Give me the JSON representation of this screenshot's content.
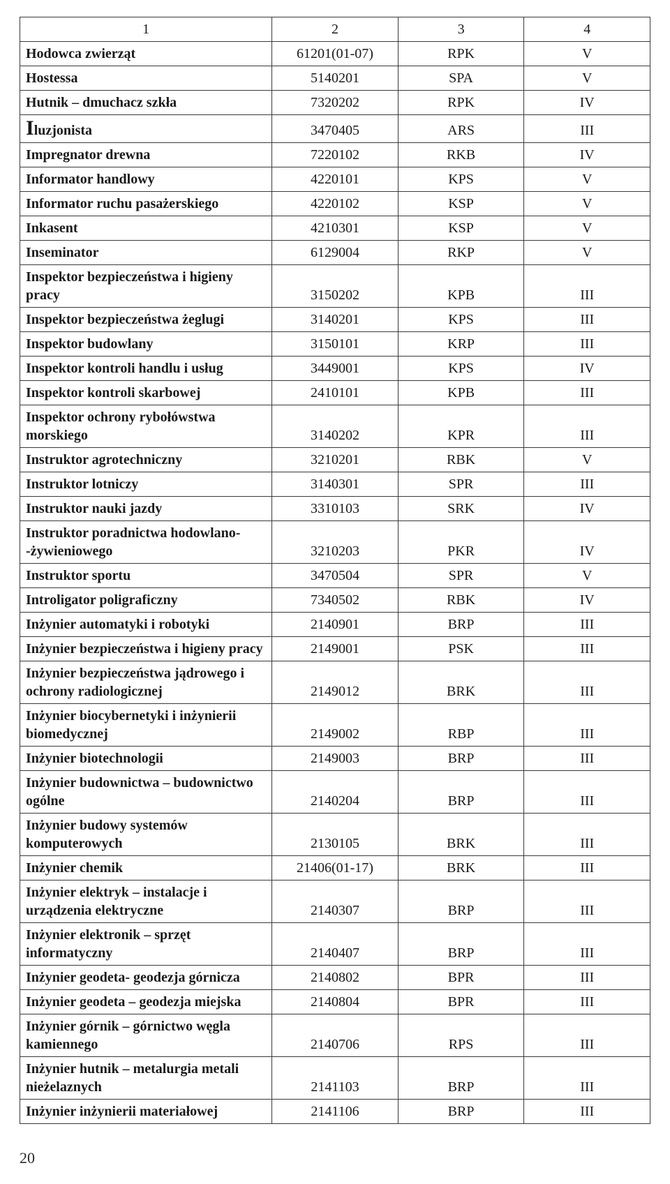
{
  "table": {
    "columns": [
      "1",
      "2",
      "3",
      "4"
    ],
    "column_widths_pct": [
      40,
      20,
      20,
      20
    ],
    "border_color": "#3a3a3a",
    "font_family": "Times New Roman",
    "header_fontsize": 20,
    "cell_fontsize": 20,
    "rows": [
      {
        "name": "Hodowca zwierząt",
        "code": "61201(01-07)",
        "abbr": "RPK",
        "level": "V",
        "dropcap": false
      },
      {
        "name": "Hostessa",
        "code": "5140201",
        "abbr": "SPA",
        "level": "V",
        "dropcap": false
      },
      {
        "name": "Hutnik – dmuchacz szkła",
        "code": "7320202",
        "abbr": "RPK",
        "level": "IV",
        "dropcap": false
      },
      {
        "name": "Iluzjonista",
        "code": "3470405",
        "abbr": "ARS",
        "level": "III",
        "dropcap": true
      },
      {
        "name": "Impregnator drewna",
        "code": "7220102",
        "abbr": "RKB",
        "level": "IV",
        "dropcap": false
      },
      {
        "name": "Informator handlowy",
        "code": "4220101",
        "abbr": "KPS",
        "level": "V",
        "dropcap": false
      },
      {
        "name": "Informator ruchu pasażerskiego",
        "code": "4220102",
        "abbr": "KSP",
        "level": "V",
        "dropcap": false
      },
      {
        "name": "Inkasent",
        "code": "4210301",
        "abbr": "KSP",
        "level": "V",
        "dropcap": false
      },
      {
        "name": "Inseminator",
        "code": "6129004",
        "abbr": "RKP",
        "level": "V",
        "dropcap": false
      },
      {
        "name": "Inspektor bezpieczeństwa i higieny pracy",
        "code": "3150202",
        "abbr": "KPB",
        "level": "III",
        "dropcap": false
      },
      {
        "name": "Inspektor bezpieczeństwa żeglugi",
        "code": "3140201",
        "abbr": "KPS",
        "level": "III",
        "dropcap": false
      },
      {
        "name": "Inspektor budowlany",
        "code": "3150101",
        "abbr": "KRP",
        "level": "III",
        "dropcap": false
      },
      {
        "name": "Inspektor kontroli handlu i usług",
        "code": "3449001",
        "abbr": "KPS",
        "level": "IV",
        "dropcap": false
      },
      {
        "name": "Inspektor kontroli skarbowej",
        "code": "2410101",
        "abbr": "KPB",
        "level": "III",
        "dropcap": false
      },
      {
        "name": "Inspektor ochrony rybołówstwa morskiego",
        "code": "3140202",
        "abbr": "KPR",
        "level": "III",
        "dropcap": false
      },
      {
        "name": "Instruktor agrotechniczny",
        "code": "3210201",
        "abbr": "RBK",
        "level": "V",
        "dropcap": false
      },
      {
        "name": "Instruktor lotniczy",
        "code": "3140301",
        "abbr": "SPR",
        "level": "III",
        "dropcap": false
      },
      {
        "name": "Instruktor nauki jazdy",
        "code": "3310103",
        "abbr": "SRK",
        "level": "IV",
        "dropcap": false
      },
      {
        "name": "Instruktor poradnictwa hodowlano- -żywieniowego",
        "code": "3210203",
        "abbr": "PKR",
        "level": "IV",
        "dropcap": false
      },
      {
        "name": "Instruktor sportu",
        "code": "3470504",
        "abbr": "SPR",
        "level": "V",
        "dropcap": false
      },
      {
        "name": "Introligator poligraficzny",
        "code": "7340502",
        "abbr": "RBK",
        "level": "IV",
        "dropcap": false
      },
      {
        "name": "Inżynier automatyki i robotyki",
        "code": "2140901",
        "abbr": "BRP",
        "level": "III",
        "dropcap": false
      },
      {
        "name": "Inżynier bezpieczeństwa i higieny pracy",
        "code": "2149001",
        "abbr": "PSK",
        "level": "III",
        "dropcap": false
      },
      {
        "name": "Inżynier bezpieczeństwa jądrowego i ochrony radiologicznej",
        "code": "2149012",
        "abbr": "BRK",
        "level": "III",
        "dropcap": false
      },
      {
        "name": "Inżynier biocybernetyki i inżynierii biomedycznej",
        "code": "2149002",
        "abbr": "RBP",
        "level": "III",
        "dropcap": false
      },
      {
        "name": "Inżynier biotechnologii",
        "code": "2149003",
        "abbr": "BRP",
        "level": "III",
        "dropcap": false
      },
      {
        "name": "Inżynier budownictwa – budownictwo ogólne",
        "code": "2140204",
        "abbr": "BRP",
        "level": "III",
        "dropcap": false
      },
      {
        "name": "Inżynier budowy systemów komputerowych",
        "code": "2130105",
        "abbr": "BRK",
        "level": "III",
        "dropcap": false
      },
      {
        "name": "Inżynier chemik",
        "code": "21406(01-17)",
        "abbr": "BRK",
        "level": "III",
        "dropcap": false
      },
      {
        "name": "Inżynier elektryk – instalacje i urządzenia elektryczne",
        "code": "2140307",
        "abbr": "BRP",
        "level": "III",
        "dropcap": false
      },
      {
        "name": "Inżynier elektronik – sprzęt informatyczny",
        "code": "2140407",
        "abbr": "BRP",
        "level": "III",
        "dropcap": false
      },
      {
        "name": "Inżynier geodeta- geodezja górnicza",
        "code": "2140802",
        "abbr": "BPR",
        "level": "III",
        "dropcap": false
      },
      {
        "name": "Inżynier geodeta – geodezja miejska",
        "code": "2140804",
        "abbr": "BPR",
        "level": "III",
        "dropcap": false
      },
      {
        "name": "Inżynier górnik  – górnictwo węgla kamiennego",
        "code": "2140706",
        "abbr": "RPS",
        "level": "III",
        "dropcap": false
      },
      {
        "name": "Inżynier hutnik – metalurgia metali nieżelaznych",
        "code": "2141103",
        "abbr": "BRP",
        "level": "III",
        "dropcap": false
      },
      {
        "name": "Inżynier inżynierii materiałowej",
        "code": "2141106",
        "abbr": "BRP",
        "level": "III",
        "dropcap": false
      }
    ]
  },
  "page_number": "20",
  "colors": {
    "background": "#ffffff",
    "text": "#1a1a1a",
    "border": "#3a3a3a"
  }
}
